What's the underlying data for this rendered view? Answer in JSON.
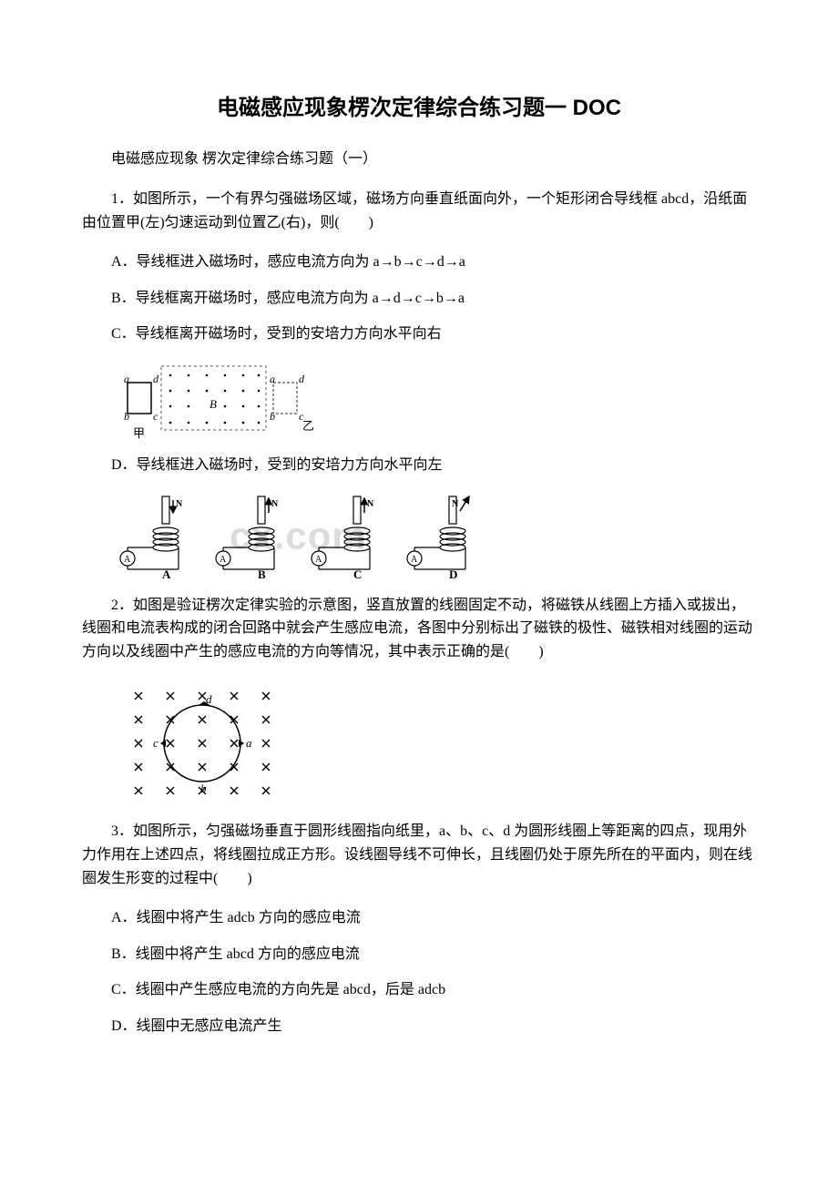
{
  "title": "电磁感应现象楞次定律综合练习题一 DOC",
  "subtitle": "电磁感应现象 楞次定律综合练习题（一）",
  "watermark": "cx.com",
  "colors": {
    "text": "#000000",
    "bg": "#ffffff",
    "watermark": "#dcdcdc",
    "figure_stroke": "#000000",
    "dashed": "#555555"
  },
  "q1": {
    "text": "1．如图所示，一个有界匀强磁场区域，磁场方向垂直纸面向外，一个矩形闭合导线框 abcd，沿纸面由位置甲(左)匀速运动到位置乙(右)，则(　　)",
    "optA": "A．导线框进入磁场时，感应电流方向为 a→b→c→d→a",
    "optB": "B．导线框离开磁场时，感应电流方向为 a→d→c→b→a",
    "optC": "C．导线框离开磁场时，受到的安培力方向水平向右",
    "optD": "D．导线框进入磁场时，受到的安培力方向水平向左",
    "labels": {
      "a": "a",
      "b": "b",
      "c": "c",
      "d": "d",
      "B": "B",
      "left": "甲",
      "right": "乙"
    }
  },
  "q2": {
    "text": "2．如图是验证楞次定律实验的示意图，竖直放置的线圈固定不动，将磁铁从线圈上方插入或拔出，线圈和电流表构成的闭合回路中就会产生感应电流，各图中分别标出了磁铁的极性、磁铁相对线圈的运动方向以及线圈中产生的感应电流的方向等情况，其中表示正确的是(　　)",
    "labels": {
      "A": "A",
      "B": "B",
      "C": "C",
      "D": "D",
      "N": "N"
    }
  },
  "q3": {
    "text": "3．如图所示，匀强磁场垂直于圆形线圈指向纸里，a、b、c、d 为圆形线圈上等距离的四点，现用外力作用在上述四点，将线圈拉成正方形。设线圈导线不可伸长，且线圈仍处于原先所在的平面内，则在线圈发生形变的过程中(　　)",
    "optA": "A．线圈中将产生 adcb 方向的感应电流",
    "optB": "B．线圈中将产生 abcd 方向的感应电流",
    "optC": "C．线圈中产生感应电流的方向先是 abcd，后是 adcb",
    "optD": "D．线圈中无感应电流产生",
    "labels": {
      "a": "a",
      "b": "b",
      "c": "c",
      "d": "d"
    }
  }
}
